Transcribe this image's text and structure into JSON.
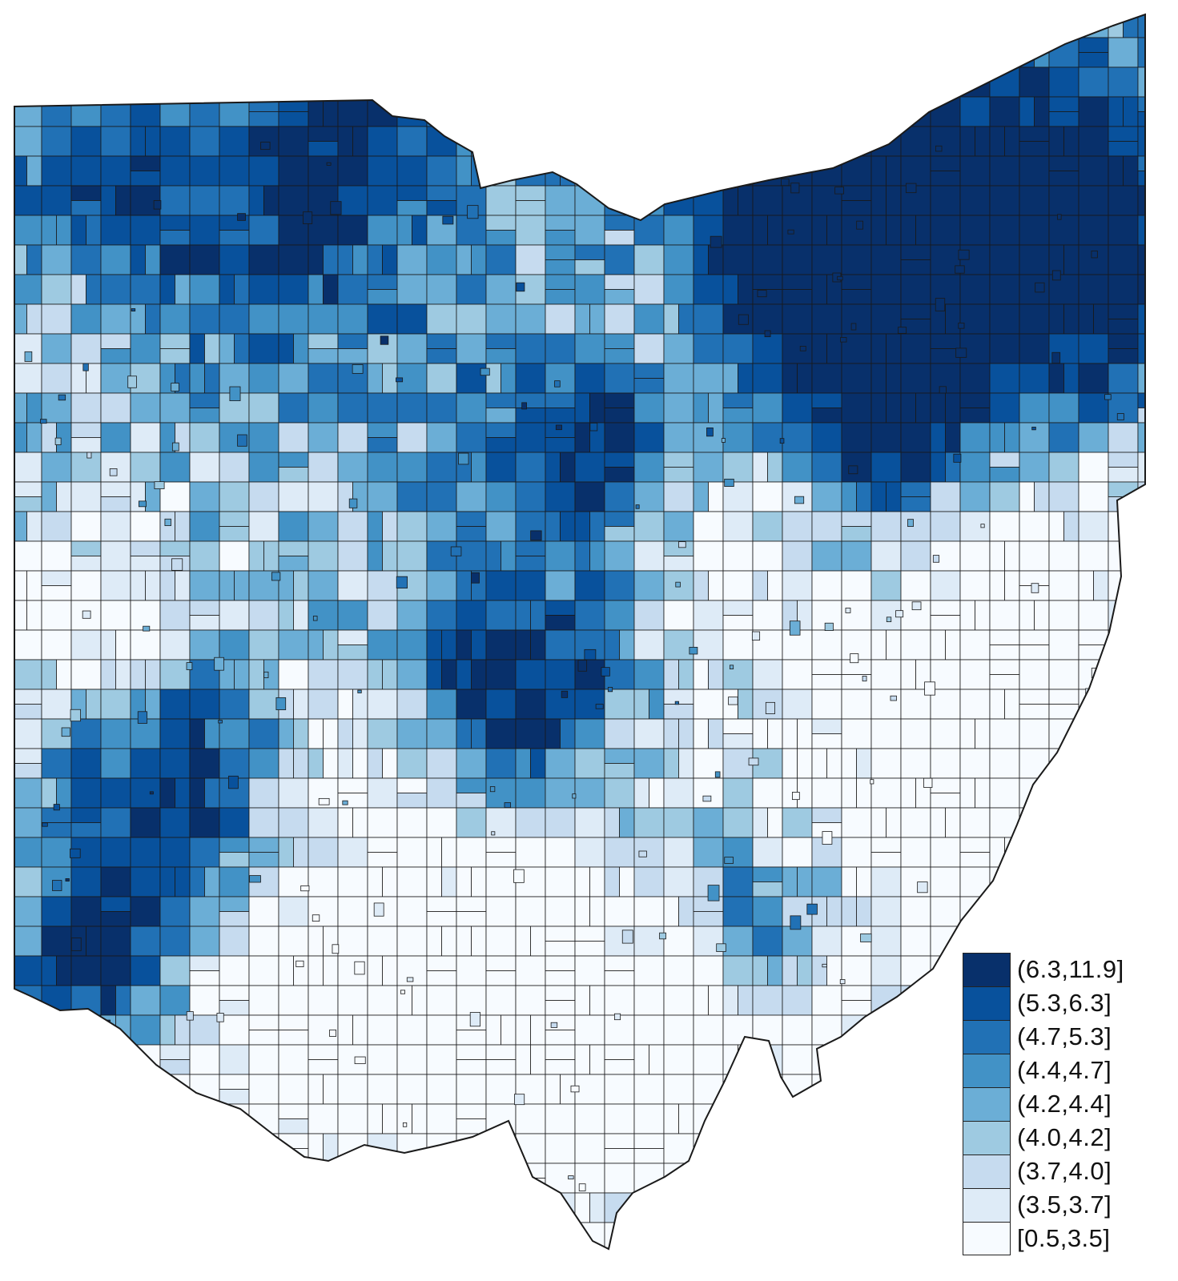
{
  "legend": {
    "classes": [
      {
        "label": "(6.3,11.9]",
        "color": "#08306b"
      },
      {
        "label": "(5.3,6.3]",
        "color": "#08519c"
      },
      {
        "label": "(4.7,5.3]",
        "color": "#2171b5"
      },
      {
        "label": "(4.4,4.7]",
        "color": "#4292c6"
      },
      {
        "label": "(4.2,4.4]",
        "color": "#6baed6"
      },
      {
        "label": "(4.0,4.2]",
        "color": "#9ecae1"
      },
      {
        "label": "(3.7,4.0]",
        "color": "#c6dbef"
      },
      {
        "label": "(3.5,3.7]",
        "color": "#deebf7"
      },
      {
        "label": "[0.5,3.5]",
        "color": "#f7fbff"
      }
    ]
  },
  "map": {
    "region_border_color": "#1a1a1a",
    "high_value_clusters": [
      "northeast",
      "north-center",
      "center",
      "southwest",
      "northwest-lake"
    ],
    "low_value_areas": [
      "southeast",
      "south-center",
      "east",
      "west-central"
    ]
  }
}
